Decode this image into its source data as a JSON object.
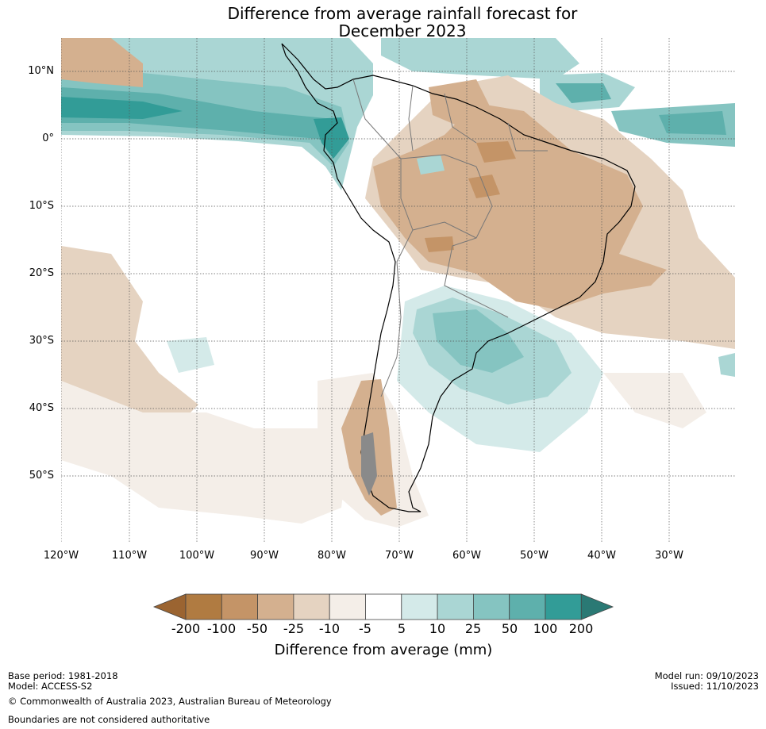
{
  "title": {
    "line1": "Difference from average rainfall forecast for",
    "line2": "December 2023"
  },
  "map": {
    "region": "South America",
    "lat_labels": [
      "10°N",
      "0°",
      "10°S",
      "20°S",
      "30°S",
      "40°S",
      "50°S"
    ],
    "lon_labels": [
      "120°W",
      "110°W",
      "100°W",
      "90°W",
      "80°W",
      "70°W",
      "60°W",
      "50°W",
      "40°W",
      "30°W"
    ]
  },
  "legend": {
    "title": "Difference from average (mm)",
    "ticks": [
      "-200",
      "-100",
      "-50",
      "-25",
      "-10",
      "-5",
      "5",
      "10",
      "25",
      "50",
      "100",
      "200"
    ],
    "colors": [
      "#9b6431",
      "#b07b41",
      "#c49467",
      "#d4b08f",
      "#e5d3c1",
      "#f4eee8",
      "#ffffff",
      "#d4eae9",
      "#aad6d4",
      "#85c4c1",
      "#5eb0ac",
      "#329c97",
      "#2a7974"
    ]
  },
  "footer": {
    "base_period": "Base period: 1981-2018",
    "model": "Model: ACCESS-S2",
    "model_run": "Model run: 09/10/2023",
    "issued": "Issued: 11/10/2023",
    "copyright": "© Commonwealth of Australia 2023, Australian Bureau of Meteorology",
    "boundaries": "Boundaries are not considered authoritative"
  }
}
